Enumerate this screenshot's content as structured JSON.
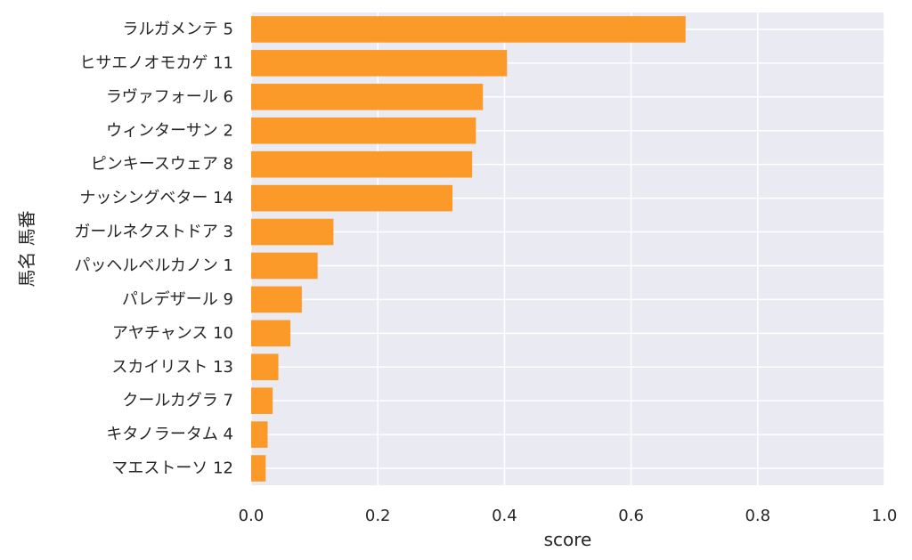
{
  "chart_data": {
    "type": "bar",
    "orientation": "horizontal",
    "xlabel": "score",
    "ylabel": "馬名 馬番",
    "xlim": [
      0,
      1.0
    ],
    "xticks": [
      "0.0",
      "0.2",
      "0.4",
      "0.6",
      "0.8",
      "1.0"
    ],
    "xtick_values": [
      0,
      0.2,
      0.4,
      0.6,
      0.8,
      1.0
    ],
    "grid": true,
    "categories": [
      "ラルガメンテ 5",
      "ヒサエノオモカゲ 11",
      "ラヴァフォール 6",
      "ウィンターサン 2",
      "ピンキースウェア 8",
      "ナッシングベター 14",
      "ガールネクストドア 3",
      "パッヘルベルカノン 1",
      "パレデザール 9",
      "アヤチャンス 10",
      "スカイリスト 13",
      "クールカグラ 7",
      "キタノラータム 4",
      "マエストーソ 12"
    ],
    "values": [
      0.686,
      0.404,
      0.366,
      0.355,
      0.349,
      0.318,
      0.13,
      0.105,
      0.08,
      0.062,
      0.043,
      0.034,
      0.026,
      0.023
    ],
    "colors": {
      "bar": "#fb9a29",
      "background": "#eaeaf2",
      "grid": "#ffffff",
      "text": "#262626"
    }
  }
}
